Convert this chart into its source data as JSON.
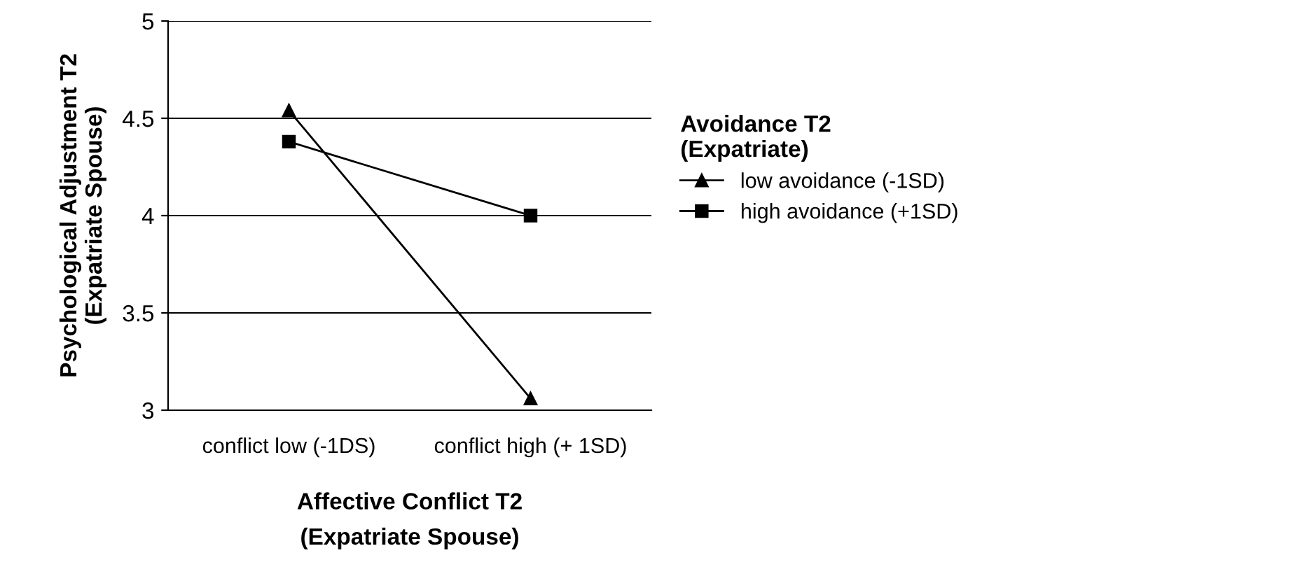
{
  "chart_data": {
    "type": "line",
    "xlabel": "Affective Conflict T2\n(Expatriate Spouse)",
    "ylabel": "Psychological Adjustment T2\n(Expatriate Spouse)",
    "legend_title": "Avoidance T2\n(Expatriate)",
    "categories": [
      "conflict low (-1DS)",
      "conflict high (+ 1SD)"
    ],
    "series": [
      {
        "name": "low avoidance (-1SD)",
        "color": "#000000",
        "marker": "triangle",
        "values": [
          4.54,
          3.06
        ]
      },
      {
        "name": "high avoidance (+1SD)",
        "color": "#000000",
        "marker": "square",
        "values": [
          4.38,
          4.0
        ]
      }
    ],
    "ylim": [
      3,
      5
    ],
    "yticks": [
      3,
      3.5,
      4,
      4.5,
      5
    ],
    "grid": "y",
    "legend": "right",
    "line_style": "solid"
  }
}
